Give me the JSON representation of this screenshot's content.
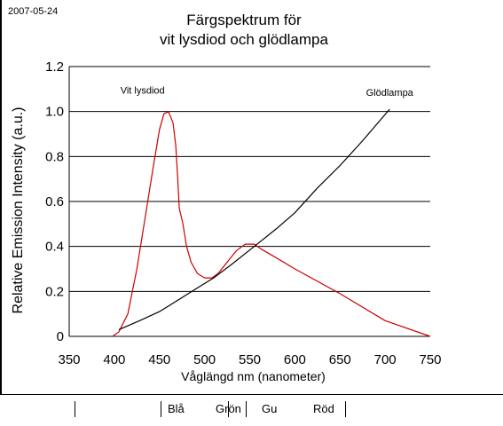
{
  "header": {
    "date": "2007-05-24",
    "title_line1": "Färgspektrum för",
    "title_line2": "vit lysdiod och glödlampa"
  },
  "chart_data": {
    "type": "line",
    "title": "Färgspektrum för vit lysdiod och glödlampa",
    "xlabel": "Våglängd nm (nanometer)",
    "ylabel": "Relative Emission Intensity (a.u.)",
    "xlim": [
      350,
      750
    ],
    "ylim": [
      0,
      1.2
    ],
    "x_ticks": [
      350,
      400,
      450,
      500,
      550,
      600,
      650,
      700,
      750
    ],
    "y_ticks": [
      0,
      0.2,
      0.4,
      0.6,
      0.8,
      1.0,
      1.2
    ],
    "y_tick_labels": [
      "0",
      "0.2",
      "0.4",
      "0.6",
      "0.8",
      "1.0",
      "1.2"
    ],
    "grid": "horizontal",
    "series": [
      {
        "name": "Vit lysdiod",
        "color": "#cc0000",
        "points": [
          [
            398,
            0.0
          ],
          [
            405,
            0.02
          ],
          [
            415,
            0.1
          ],
          [
            425,
            0.3
          ],
          [
            435,
            0.55
          ],
          [
            443,
            0.75
          ],
          [
            450,
            0.92
          ],
          [
            455,
            0.99
          ],
          [
            460,
            1.0
          ],
          [
            465,
            0.95
          ],
          [
            468,
            0.85
          ],
          [
            470,
            0.72
          ],
          [
            472,
            0.57
          ],
          [
            476,
            0.5
          ],
          [
            480,
            0.4
          ],
          [
            485,
            0.33
          ],
          [
            492,
            0.28
          ],
          [
            500,
            0.26
          ],
          [
            508,
            0.26
          ],
          [
            515,
            0.28
          ],
          [
            525,
            0.33
          ],
          [
            535,
            0.38
          ],
          [
            545,
            0.41
          ],
          [
            555,
            0.41
          ],
          [
            562,
            0.39
          ],
          [
            575,
            0.36
          ],
          [
            600,
            0.3
          ],
          [
            650,
            0.19
          ],
          [
            700,
            0.07
          ],
          [
            750,
            0.0
          ]
        ]
      },
      {
        "name": "Glödlampa",
        "color": "#000000",
        "points": [
          [
            405,
            0.03
          ],
          [
            428,
            0.07
          ],
          [
            450,
            0.11
          ],
          [
            470,
            0.16
          ],
          [
            490,
            0.21
          ],
          [
            510,
            0.26
          ],
          [
            530,
            0.32
          ],
          [
            555,
            0.4
          ],
          [
            580,
            0.48
          ],
          [
            600,
            0.55
          ],
          [
            625,
            0.66
          ],
          [
            650,
            0.76
          ],
          [
            675,
            0.87
          ],
          [
            690,
            0.94
          ],
          [
            705,
            1.01
          ]
        ]
      }
    ],
    "annotations": [
      {
        "text": "Vit lysdiod",
        "x": 445,
        "y": 1.08
      },
      {
        "text": "Glödlampa",
        "x": 705,
        "y": 1.07
      }
    ]
  },
  "color_bands": {
    "labels": [
      "Blå",
      "Grön",
      "Gu",
      "Röd"
    ],
    "separators_nm": [
      400,
      495,
      570,
      590,
      700
    ]
  }
}
